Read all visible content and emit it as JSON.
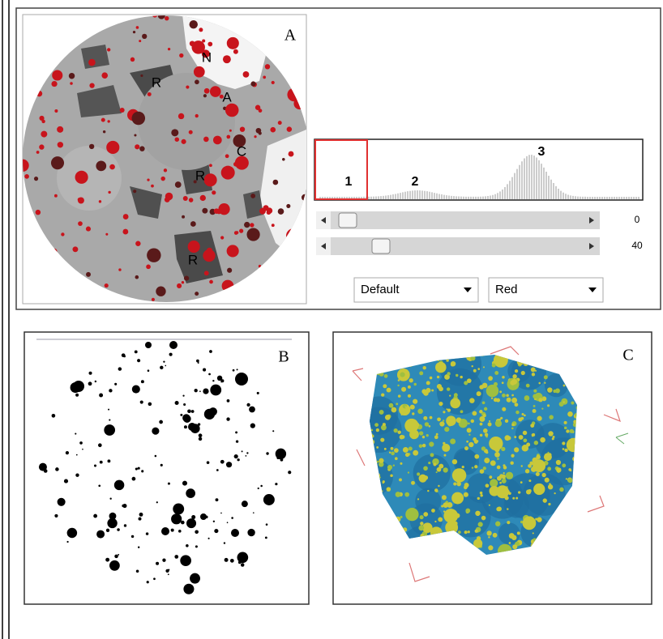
{
  "panel_a": {
    "label": "A",
    "image_labels": [
      "N",
      "A",
      "R",
      "C",
      "R",
      "R"
    ],
    "histogram_labels": [
      "1",
      "2",
      "3"
    ],
    "slider_values": [
      0,
      40
    ],
    "dropdowns": [
      "Default",
      "Red"
    ]
  },
  "panel_b": {
    "label": "B"
  },
  "panel_c": {
    "label": "C"
  }
}
